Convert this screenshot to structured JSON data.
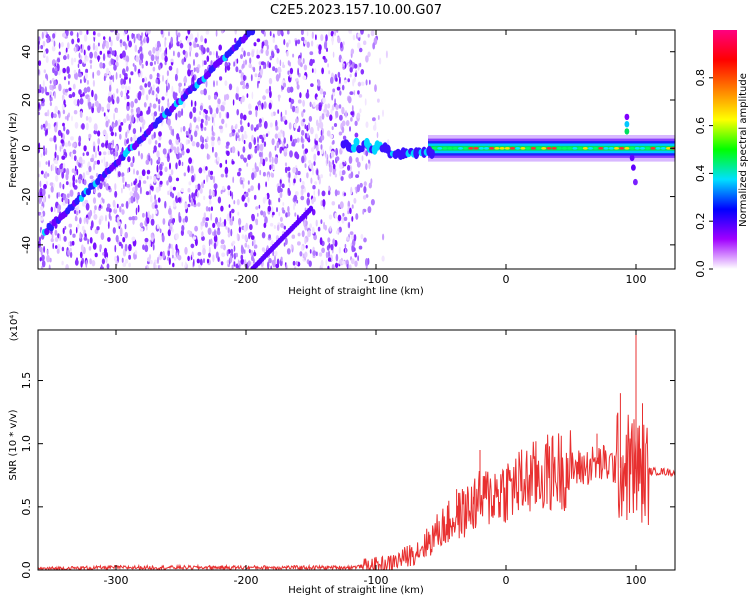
{
  "figure": {
    "title": "C2E5.2023.157.10.00.G07"
  },
  "chart_data": [
    {
      "type": "heatmap",
      "xlabel": "Height of straight line (km)",
      "ylabel": "Frequency (Hz)",
      "xlim": [
        -360,
        130
      ],
      "ylim": [
        -50,
        49
      ],
      "xticks": [
        -300,
        -200,
        -100,
        0,
        100
      ],
      "yticks": [
        -40,
        -20,
        0,
        20,
        40
      ],
      "xtick_labels": [
        "-300",
        "-200",
        "-100",
        "0",
        "100"
      ],
      "ytick_labels": [
        "-40",
        "-20",
        "0",
        "20",
        "40"
      ],
      "grid": false,
      "features": {
        "noise_region_x": [
          -360,
          -90
        ],
        "main_trace": {
          "x_start": -355,
          "x_end": -195,
          "freq_start": -35,
          "freq_end": 49
        },
        "secondary_trace": {
          "x_start": -195,
          "x_end": -150,
          "freq_start": -50,
          "freq_end": -25
        },
        "carrier_band": {
          "x_start": -125,
          "x_end": 130,
          "freq": 0
        },
        "spur_x": 93
      },
      "colorbar": {
        "label": "Normalized spectral amplitude",
        "range": [
          0,
          1
        ],
        "ticks": [
          "0.0",
          "0.2",
          "0.4",
          "0.6",
          "0.8"
        ],
        "tick_values": [
          0,
          0.2,
          0.4,
          0.6,
          0.8
        ],
        "colormap": [
          "#ffffff",
          "#a000ff",
          "#0000ff",
          "#00e0ff",
          "#00ff00",
          "#ffff00",
          "#ff8000",
          "#ff0000",
          "#ff0080"
        ]
      }
    },
    {
      "type": "line",
      "xlabel": "Height of straight line (km)",
      "ylabel": "SNR (10 * v/v)",
      "y_multiplier_label": "(x10⁴)",
      "xlim": [
        -360,
        130
      ],
      "ylim": [
        0,
        1.9
      ],
      "xticks": [
        -300,
        -200,
        -100,
        0,
        100
      ],
      "yticks": [
        0,
        0.5,
        1.0,
        1.5
      ],
      "xtick_labels": [
        "-300",
        "-200",
        "-100",
        "0",
        "100"
      ],
      "ytick_labels": [
        "0.0",
        "0.5",
        "1.0",
        "1.5"
      ],
      "grid": false,
      "series": [
        {
          "color": "#e83030",
          "x": [
            -360,
            -300,
            -200,
            -120,
            -100,
            -90,
            -80,
            -70,
            -60,
            -50,
            -40,
            -35,
            -30,
            -25,
            -20,
            -10,
            0,
            10,
            20,
            30,
            40,
            50,
            60,
            65,
            70,
            75,
            80,
            85,
            90,
            95,
            100,
            105,
            110,
            120,
            130
          ],
          "values": [
            0.01,
            0.02,
            0.02,
            0.02,
            0.04,
            0.05,
            0.09,
            0.14,
            0.22,
            0.33,
            0.4,
            0.44,
            0.47,
            0.52,
            0.55,
            0.6,
            0.64,
            0.68,
            0.72,
            0.76,
            0.79,
            0.8,
            0.81,
            0.83,
            0.84,
            0.84,
            0.83,
            0.82,
            0.8,
            0.82,
            0.8,
            0.78,
            0.78,
            0.78,
            0.77
          ],
          "peaks": [
            {
              "x": -38,
              "y": 0.64
            },
            {
              "x": -25,
              "y": 0.58
            },
            {
              "x": -20,
              "y": 0.95
            },
            {
              "x": 70,
              "y": 1.08
            },
            {
              "x": 88,
              "y": 1.4
            },
            {
              "x": 100,
              "y": 1.9
            },
            {
              "x": 105,
              "y": 1.32
            }
          ]
        }
      ]
    }
  ]
}
